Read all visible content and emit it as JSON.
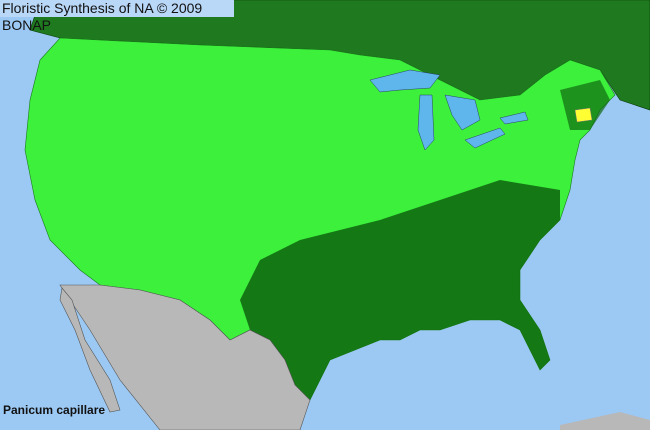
{
  "title": "Floristic Synthesis of NA © 2009 BONAP",
  "species": "Panicum capillare",
  "colors": {
    "ocean": "#9cc9f4",
    "canada": "#1f7a1f",
    "us_present": "#3cf03c",
    "us_county_dark": "#0f6a0f",
    "mexico": "#b8b8b8",
    "lakes": "#5fb6ec",
    "highlight": "#ffff33"
  }
}
